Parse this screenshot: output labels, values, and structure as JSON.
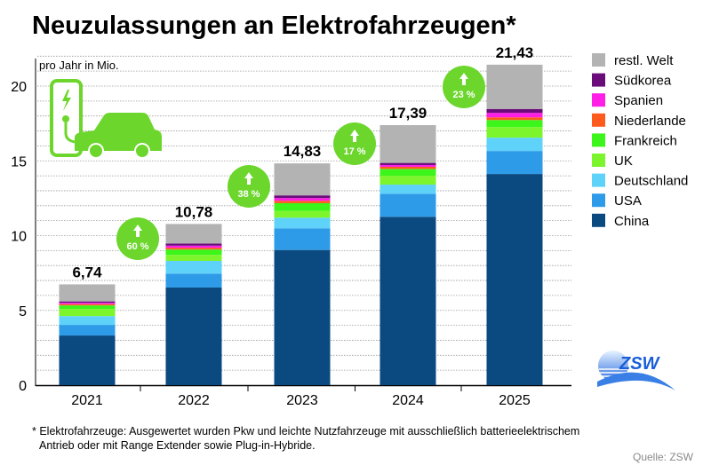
{
  "chart_data": {
    "type": "bar",
    "stacked": true,
    "title": "Neuzulassungen an Elektrofahrzeugen*",
    "ylabel": "pro Jahr in Mio.",
    "xlabel": "",
    "ylim": [
      0,
      22
    ],
    "yticks": [
      0,
      5,
      10,
      15,
      20
    ],
    "ytick_labels": [
      "0",
      "5",
      "10",
      "15",
      "20"
    ],
    "grid": true,
    "legend_position": "right",
    "categories": [
      "2021",
      "2022",
      "2023",
      "2024",
      "2025"
    ],
    "totals": [
      6.74,
      10.78,
      14.83,
      17.39,
      21.43
    ],
    "total_labels": [
      "6,74",
      "10,78",
      "14,83",
      "17,39",
      "21,43"
    ],
    "growth_labels": [
      "60 %",
      "38 %",
      "17 %",
      "23 %"
    ],
    "series": [
      {
        "name": "China",
        "color": "#0a4a80",
        "values": [
          3.32,
          6.53,
          9.04,
          11.26,
          14.12
        ]
      },
      {
        "name": "USA",
        "color": "#2e9be8",
        "values": [
          0.71,
          0.93,
          1.45,
          1.54,
          1.54
        ]
      },
      {
        "name": "Deutschland",
        "color": "#5fd2fa",
        "values": [
          0.59,
          0.85,
          0.71,
          0.61,
          0.89
        ]
      },
      {
        "name": "UK",
        "color": "#7df52c",
        "values": [
          0.47,
          0.4,
          0.45,
          0.59,
          0.71
        ]
      },
      {
        "name": "Frankreich",
        "color": "#3cf51a",
        "values": [
          0.24,
          0.36,
          0.52,
          0.46,
          0.47
        ]
      },
      {
        "name": "Niederlande",
        "color": "#ff5a1e",
        "values": [
          0.09,
          0.12,
          0.16,
          0.14,
          0.18
        ]
      },
      {
        "name": "Spanien",
        "color": "#ff1ee6",
        "values": [
          0.09,
          0.14,
          0.18,
          0.12,
          0.3
        ]
      },
      {
        "name": "Südkorea",
        "color": "#6a0d7a",
        "values": [
          0.09,
          0.14,
          0.18,
          0.14,
          0.26
        ]
      },
      {
        "name": "restl. Welt",
        "color": "#b3b3b3",
        "values": [
          1.14,
          1.31,
          2.14,
          2.53,
          2.96
        ]
      }
    ]
  },
  "icons": {
    "charger_car": "ev-charging-car-icon",
    "logo": "zsw-logo",
    "logo_text": "ZSW",
    "accent_color": "#6cd62d"
  },
  "footnote": {
    "line1": "* Elektrofahrzeuge: Ausgewertet wurden Pkw und leichte Nutzfahrzeuge mit ausschließlich batterieelektrischem",
    "line2": "Antrieb oder mit Range Extender sowie Plug-in-Hybride."
  },
  "source": "Quelle: ZSW"
}
